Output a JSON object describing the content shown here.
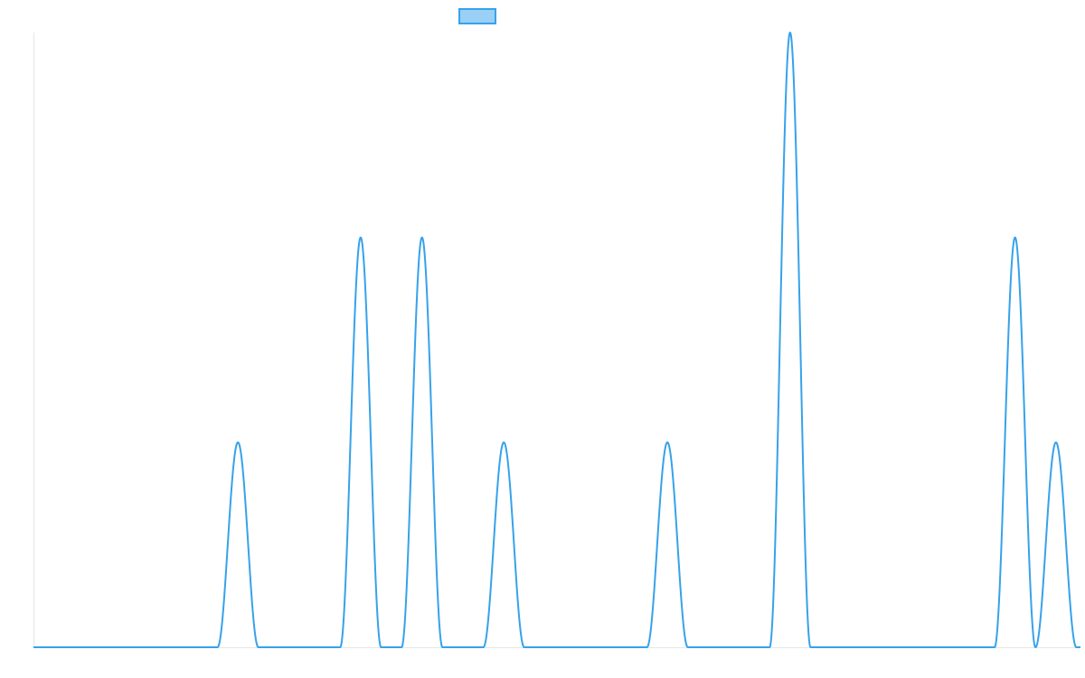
{
  "chart_data": {
    "type": "line",
    "title": "",
    "xlabel": "",
    "ylabel": "",
    "xlim": [
      0,
      256
    ],
    "ylim": [
      0,
      3
    ],
    "grid": false,
    "legend": {
      "placement": "top-center",
      "entries": [
        {
          "label": ""
        }
      ]
    },
    "series": [
      {
        "name": "",
        "color": "#36A2EB",
        "fill_color": "#9AD0F5",
        "peaks": [
          {
            "center": 50,
            "height": 1,
            "half_width": 5
          },
          {
            "center": 80,
            "height": 2,
            "half_width": 5
          },
          {
            "center": 95,
            "height": 2,
            "half_width": 5
          },
          {
            "center": 115,
            "height": 1,
            "half_width": 5
          },
          {
            "center": 155,
            "height": 1,
            "half_width": 5
          },
          {
            "center": 185,
            "height": 3,
            "half_width": 5
          },
          {
            "center": 240,
            "height": 2,
            "half_width": 5
          },
          {
            "center": 250,
            "height": 1,
            "half_width": 5
          }
        ]
      }
    ]
  }
}
